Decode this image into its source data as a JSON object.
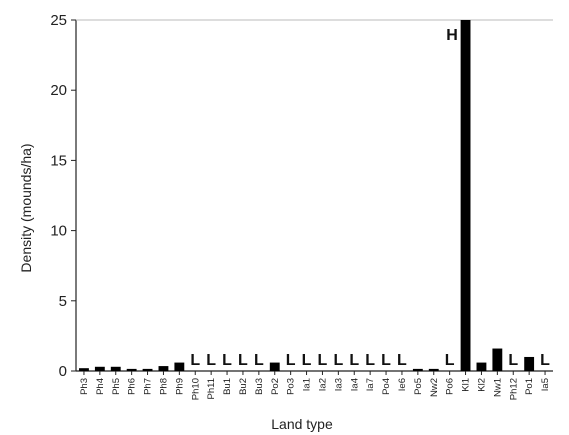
{
  "chart_data": {
    "type": "bar",
    "xlabel": "Land type",
    "ylabel": "Density (mounds/ha)",
    "ylim": [
      0,
      25
    ],
    "yticks": [
      0,
      5,
      10,
      15,
      20,
      25
    ],
    "grid": false,
    "bar_color": "#000000",
    "categories": [
      "Ph3",
      "Ph4",
      "Ph5",
      "Ph6",
      "Ph7",
      "Ph8",
      "Ph9",
      "Ph10",
      "Ph11",
      "Bu1",
      "Bu2",
      "Bu3",
      "Po2",
      "Po3",
      "Ia1",
      "Ia2",
      "Ia3",
      "Ia4",
      "Ia7",
      "Po4",
      "Ie6",
      "Po5",
      "Nw2",
      "Po6",
      "Kl1",
      "Kl2",
      "Nw1",
      "Ph12",
      "Po1",
      "Ia5"
    ],
    "values": [
      0.2,
      0.3,
      0.3,
      0.15,
      0.15,
      0.35,
      0.6,
      0,
      0,
      0,
      0,
      0,
      0.6,
      0,
      0,
      0,
      0,
      0,
      0,
      0,
      0,
      0.15,
      0.15,
      0,
      25,
      0.6,
      1.6,
      0,
      1.0,
      0
    ],
    "annotations": [
      "",
      "",
      "",
      "",
      "",
      "",
      "",
      "L",
      "L",
      "L",
      "L",
      "L",
      "",
      "L",
      "L",
      "L",
      "L",
      "L",
      "L",
      "L",
      "L",
      "",
      "",
      "L",
      "H",
      "",
      "",
      "L",
      "",
      "L"
    ]
  }
}
